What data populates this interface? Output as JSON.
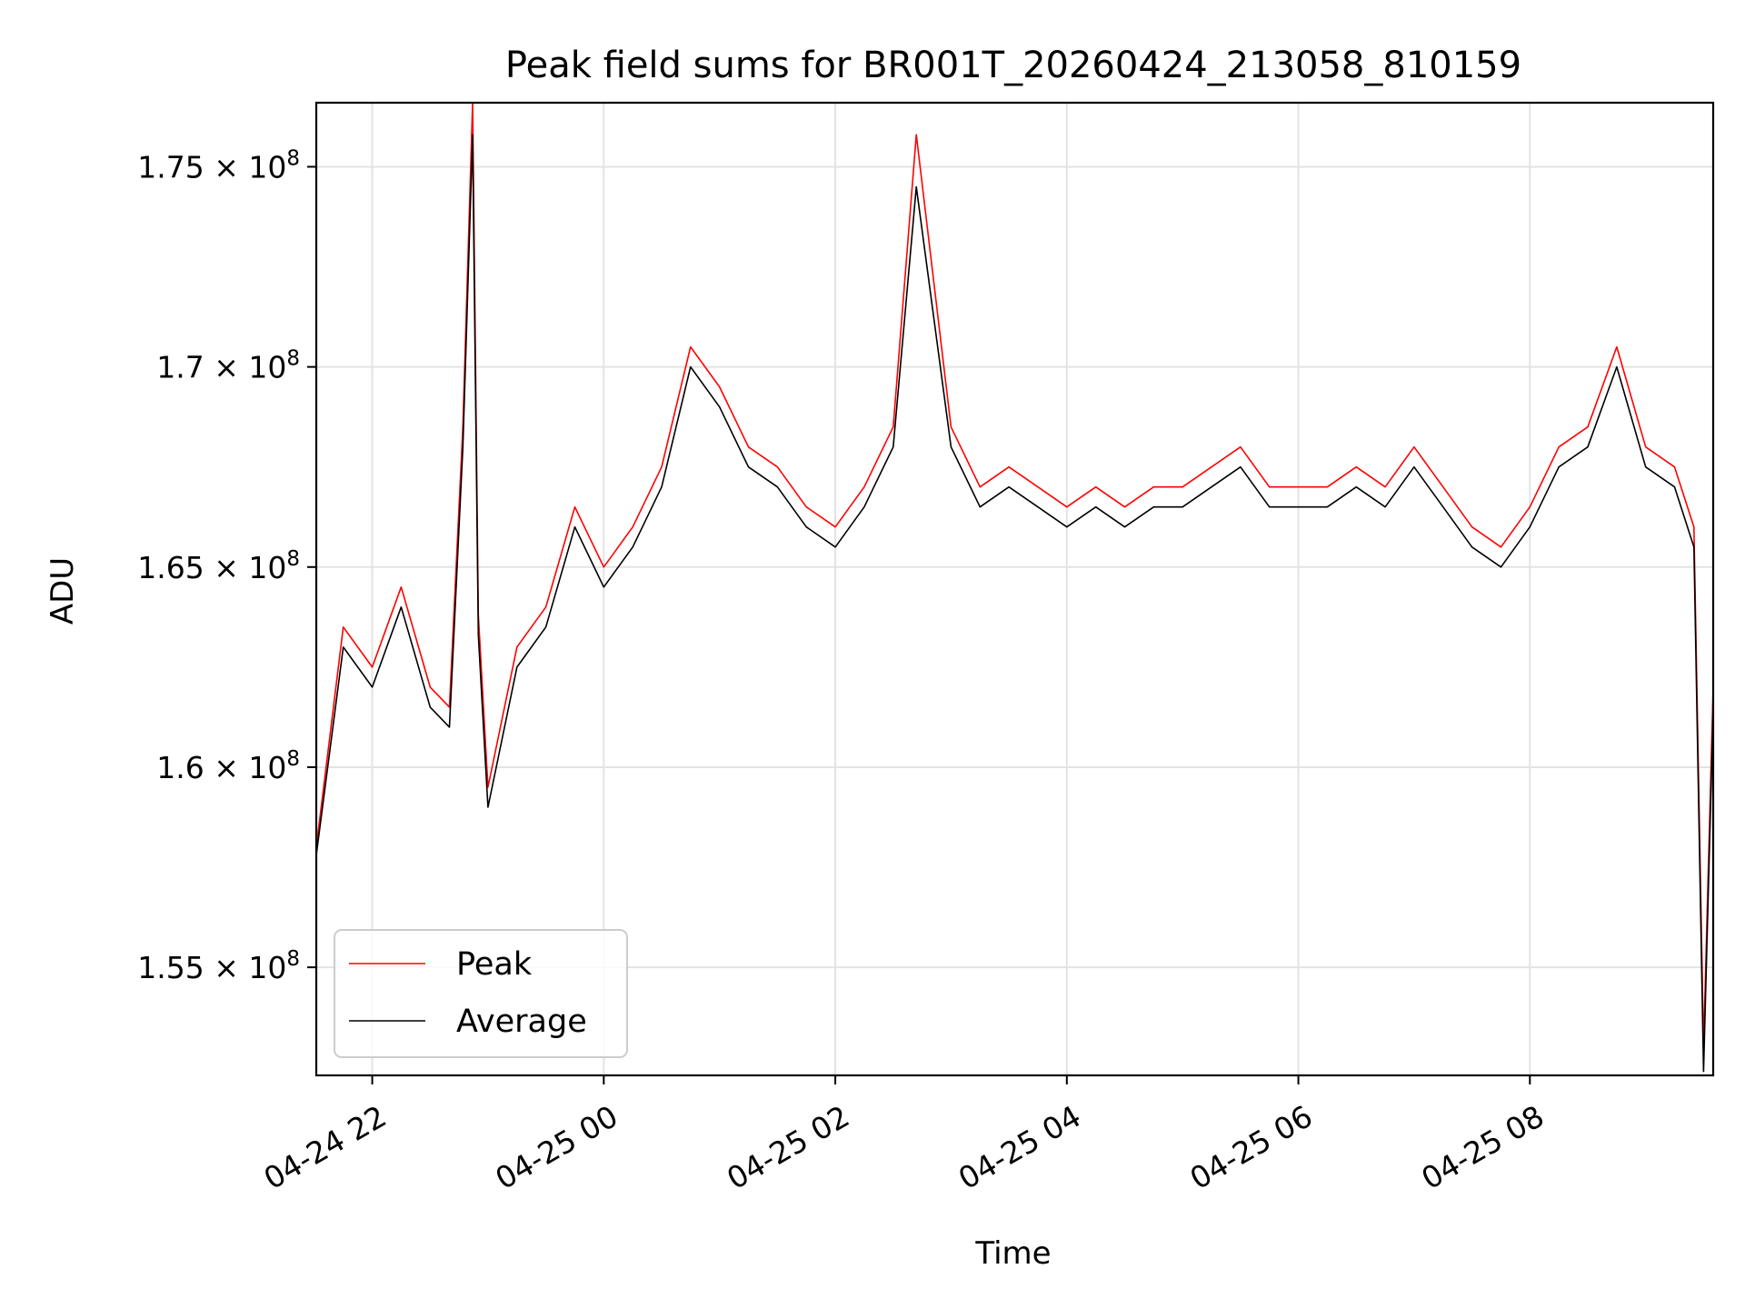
{
  "chart_data": {
    "type": "line",
    "title": "Peak field sums for BR001T_20260424_213058_810159",
    "xlabel": "Time",
    "ylabel": "ADU",
    "x_range": [
      "04-24 21:31",
      "04-25 09:35"
    ],
    "ylim": [
      152300000,
      176600000
    ],
    "y_ticks": [
      {
        "value": 155000000,
        "label": "1.55 × 10^8"
      },
      {
        "value": 160000000,
        "label": "1.6 × 10^8"
      },
      {
        "value": 165000000,
        "label": "1.65 × 10^8"
      },
      {
        "value": 170000000,
        "label": "1.7 × 10^8"
      },
      {
        "value": 175000000,
        "label": "1.75 × 10^8"
      }
    ],
    "y_tick_mantissas": [
      "1.55",
      "1.6",
      "1.65",
      "1.7",
      "1.75"
    ],
    "y_tick_base": "10",
    "y_tick_exponent": "8",
    "x_ticks": [
      "04-24 22",
      "04-25 00",
      "04-25 02",
      "04-25 04",
      "04-25 06",
      "04-25 08"
    ],
    "grid": true,
    "legend_position": "lower-left",
    "x": [
      "04-24 21:31",
      "04-24 21:45",
      "04-24 22:00",
      "04-24 22:15",
      "04-24 22:30",
      "04-24 22:40",
      "04-24 22:47",
      "04-24 22:52",
      "04-24 22:55",
      "04-24 23:00",
      "04-24 23:15",
      "04-24 23:30",
      "04-24 23:45",
      "04-25 00:00",
      "04-25 00:15",
      "04-25 00:30",
      "04-25 00:45",
      "04-25 01:00",
      "04-25 01:15",
      "04-25 01:30",
      "04-25 01:45",
      "04-25 02:00",
      "04-25 02:15",
      "04-25 02:30",
      "04-25 02:42",
      "04-25 03:00",
      "04-25 03:15",
      "04-25 03:30",
      "04-25 03:45",
      "04-25 04:00",
      "04-25 04:15",
      "04-25 04:30",
      "04-25 04:45",
      "04-25 05:00",
      "04-25 05:15",
      "04-25 05:30",
      "04-25 05:45",
      "04-25 06:00",
      "04-25 06:15",
      "04-25 06:30",
      "04-25 06:45",
      "04-25 07:00",
      "04-25 07:15",
      "04-25 07:30",
      "04-25 07:45",
      "04-25 08:00",
      "04-25 08:15",
      "04-25 08:30",
      "04-25 08:45",
      "04-25 09:00",
      "04-25 09:15",
      "04-25 09:25",
      "04-25 09:30",
      "04-25 09:35"
    ],
    "series": [
      {
        "name": "Peak",
        "color": "#ff0000",
        "values": [
          158000000,
          163500000,
          162500000,
          164500000,
          162000000,
          161500000,
          168500000,
          176600000,
          163800000,
          159500000,
          163000000,
          164000000,
          166500000,
          165000000,
          166000000,
          167500000,
          170500000,
          169500000,
          168000000,
          167500000,
          166500000,
          166000000,
          167000000,
          168500000,
          175800000,
          168500000,
          167000000,
          167500000,
          167000000,
          166500000,
          167000000,
          166500000,
          167000000,
          167000000,
          167500000,
          168000000,
          167000000,
          167000000,
          167000000,
          167500000,
          167000000,
          168000000,
          167000000,
          166000000,
          165500000,
          166500000,
          168000000,
          168500000,
          170500000,
          168000000,
          167500000,
          166000000,
          153000000,
          162000000
        ]
      },
      {
        "name": "Average",
        "color": "#000000",
        "values": [
          157800000,
          163000000,
          162000000,
          164000000,
          161500000,
          161000000,
          168000000,
          175800000,
          163300000,
          159000000,
          162500000,
          163500000,
          166000000,
          164500000,
          165500000,
          167000000,
          170000000,
          169000000,
          167500000,
          167000000,
          166000000,
          165500000,
          166500000,
          168000000,
          174500000,
          168000000,
          166500000,
          167000000,
          166500000,
          166000000,
          166500000,
          166000000,
          166500000,
          166500000,
          167000000,
          167500000,
          166500000,
          166500000,
          166500000,
          167000000,
          166500000,
          167500000,
          166500000,
          165500000,
          165000000,
          166000000,
          167500000,
          168000000,
          170000000,
          167500000,
          167000000,
          165500000,
          152400000,
          161500000
        ]
      }
    ]
  }
}
